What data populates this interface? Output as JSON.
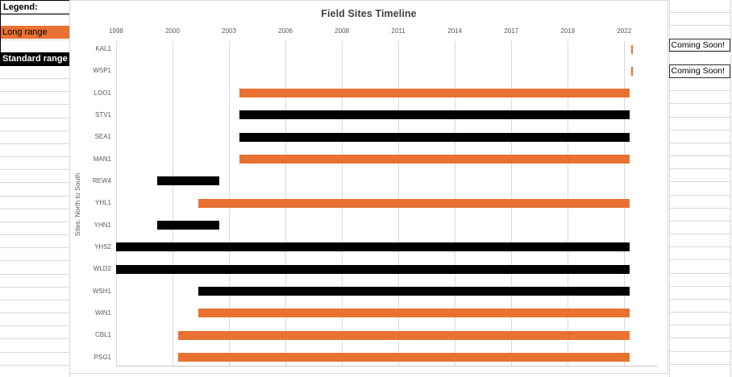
{
  "colors": {
    "long_range": "#E97132",
    "standard_range": "#000000",
    "chart_gridline": "#D9D9D9",
    "sheet_gridline": "#D8D8D8",
    "axis_line": "#C6C6C6",
    "axis_text": "#595959",
    "title_text": "#404040",
    "cell_border": "#2B2B2B"
  },
  "legend": {
    "title": "Legend:",
    "items": [
      {
        "label": "Long range",
        "key": "long_range",
        "bg": "#E97132",
        "fg": "#000000",
        "bold": false
      },
      {
        "label": "Standard range",
        "key": "standard_range",
        "bg": "#000000",
        "fg": "#FFFFFF",
        "bold": true
      }
    ]
  },
  "annotations": {
    "coming_soon": [
      {
        "label": "Coming Soon!",
        "site": "KAL1"
      },
      {
        "label": "Coming Soon!",
        "site": "WSP1"
      }
    ]
  },
  "chart_data": {
    "type": "bar",
    "variant": "horizontal-gantt-timeline",
    "title": "Field Sites Timeline",
    "ylabel": "Sites: North to South",
    "xlabel": "",
    "x_tick_labels": [
      "1998",
      "2000",
      "2003",
      "2006",
      "2008",
      "2011",
      "2014",
      "2017",
      "2019",
      "2022"
    ],
    "xlim": [
      1998,
      2023.2
    ],
    "grid": true,
    "legend_position": "worksheet-cells-top-left",
    "categories": [
      "KAL1",
      "WSP1",
      "LOO1",
      "STV1",
      "SEA1",
      "MAN1",
      "REW4",
      "YHL1",
      "YHN1",
      "YHS2",
      "WLD2",
      "WSH1",
      "WIN1",
      "CBL1",
      "PSG1"
    ],
    "bars": [
      {
        "site": "KAL1",
        "range_type": "Long range",
        "start": 2023.0,
        "end": 2023.1
      },
      {
        "site": "WSP1",
        "range_type": "Long range",
        "start": 2023.0,
        "end": 2023.1
      },
      {
        "site": "LOO1",
        "range_type": "Long range",
        "start": 2004.0,
        "end": 2022.95
      },
      {
        "site": "STV1",
        "range_type": "Standard range",
        "start": 2004.0,
        "end": 2022.95
      },
      {
        "site": "SEA1",
        "range_type": "Standard range",
        "start": 2004.0,
        "end": 2022.95
      },
      {
        "site": "MAN1",
        "range_type": "Long range",
        "start": 2004.0,
        "end": 2022.95
      },
      {
        "site": "REW4",
        "range_type": "Standard range",
        "start": 2000.0,
        "end": 2003.0
      },
      {
        "site": "YHL1",
        "range_type": "Long range",
        "start": 2002.0,
        "end": 2022.95
      },
      {
        "site": "YHN1",
        "range_type": "Standard range",
        "start": 2000.0,
        "end": 2003.0
      },
      {
        "site": "YHS2",
        "range_type": "Standard range",
        "start": 1998.0,
        "end": 2022.95
      },
      {
        "site": "WLD2",
        "range_type": "Standard range",
        "start": 1998.0,
        "end": 2022.95
      },
      {
        "site": "WSH1",
        "range_type": "Standard range",
        "start": 2002.0,
        "end": 2022.95
      },
      {
        "site": "WIN1",
        "range_type": "Long range",
        "start": 2002.0,
        "end": 2022.95
      },
      {
        "site": "CBL1",
        "range_type": "Long range",
        "start": 2001.0,
        "end": 2022.95
      },
      {
        "site": "PSG1",
        "range_type": "Long range",
        "start": 2001.0,
        "end": 2022.95
      }
    ]
  }
}
